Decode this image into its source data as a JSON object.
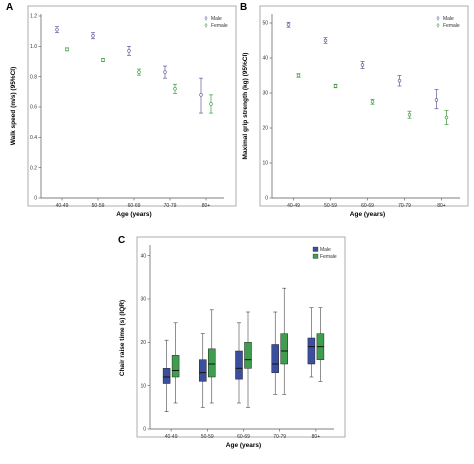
{
  "chart_data": [
    {
      "panel": "A",
      "type": "scatter",
      "subtype": "error-bar",
      "xlabel": "Age (years)",
      "ylabel": "Walk speed (m/s) (95%CI)",
      "categories": [
        "40-49",
        "50-59",
        "60-69",
        "70-79",
        "80+"
      ],
      "ylim": [
        0,
        1.2
      ],
      "yticks": [
        0,
        0.2,
        0.4,
        0.6,
        0.8,
        1.0,
        1.2
      ],
      "ytick_labels": [
        "0",
        "0.2",
        "0.4",
        "0.6",
        "0.8",
        "1.0",
        "1.2"
      ],
      "legend": "top-right",
      "grid": false,
      "series": [
        {
          "name": "Male",
          "color": "#5b5b9a",
          "marker": "open-circle",
          "values": [
            1.11,
            1.07,
            0.97,
            0.83,
            0.68
          ],
          "lower": [
            1.09,
            1.05,
            0.94,
            0.79,
            0.56
          ],
          "upper": [
            1.13,
            1.09,
            1.0,
            0.87,
            0.79
          ]
        },
        {
          "name": "Female",
          "color": "#3a9a3a",
          "marker": "open-circle",
          "values": [
            0.98,
            0.91,
            0.83,
            0.72,
            0.62
          ],
          "lower": [
            0.97,
            0.9,
            0.81,
            0.69,
            0.56
          ],
          "upper": [
            0.99,
            0.92,
            0.85,
            0.75,
            0.68
          ]
        }
      ]
    },
    {
      "panel": "B",
      "type": "scatter",
      "subtype": "error-bar",
      "xlabel": "Age (years)",
      "ylabel": "Maximal grip strength (kg) (95%CI)",
      "categories": [
        "40-49",
        "50-59",
        "60-69",
        "70-79",
        "80+"
      ],
      "ylim": [
        0,
        52
      ],
      "yticks": [
        0,
        10,
        20,
        30,
        40,
        50
      ],
      "ytick_labels": [
        "0",
        "10",
        "20",
        "30",
        "40",
        "50"
      ],
      "legend": "top-right",
      "grid": false,
      "series": [
        {
          "name": "Male",
          "color": "#5b5b9a",
          "marker": "open-circle",
          "values": [
            49.5,
            45,
            38,
            33.5,
            28
          ],
          "lower": [
            48.8,
            44.2,
            37,
            32,
            25.5
          ],
          "upper": [
            50.2,
            45.8,
            39,
            35,
            31
          ]
        },
        {
          "name": "Female",
          "color": "#3a9a3a",
          "marker": "open-circle",
          "values": [
            35,
            32,
            27.5,
            23.8,
            23
          ],
          "lower": [
            34.5,
            31.5,
            26.8,
            22.8,
            21
          ],
          "upper": [
            35.5,
            32.5,
            28.2,
            24.8,
            25
          ]
        }
      ]
    },
    {
      "panel": "C",
      "type": "box",
      "xlabel": "Age (years)",
      "ylabel": "Chair raise time (s) (IQR)",
      "categories": [
        "40-49",
        "50-59",
        "60-69",
        "70-79",
        "80+"
      ],
      "ylim": [
        0,
        42
      ],
      "yticks": [
        0,
        10,
        20,
        30,
        40
      ],
      "ytick_labels": [
        "0",
        "10",
        "20",
        "30",
        "40"
      ],
      "legend": "top-right",
      "grid": false,
      "series": [
        {
          "name": "Male",
          "color": "#3b4f9e",
          "boxes": [
            {
              "min": 4,
              "q1": 10.5,
              "median": 12,
              "q3": 14,
              "max": 20.5
            },
            {
              "min": 5,
              "q1": 11,
              "median": 13,
              "q3": 16,
              "max": 22
            },
            {
              "min": 6,
              "q1": 11.5,
              "median": 14,
              "q3": 18,
              "max": 24.5
            },
            {
              "min": 8,
              "q1": 13,
              "median": 15,
              "q3": 19.5,
              "max": 27
            },
            {
              "min": 12,
              "q1": 15,
              "median": 19,
              "q3": 21,
              "max": 28
            }
          ]
        },
        {
          "name": "Female",
          "color": "#3f9e4d",
          "boxes": [
            {
              "min": 6,
              "q1": 12,
              "median": 13.5,
              "q3": 17,
              "max": 24.5
            },
            {
              "min": 6,
              "q1": 12,
              "median": 15,
              "q3": 18.5,
              "max": 27.5
            },
            {
              "min": 5,
              "q1": 14,
              "median": 16,
              "q3": 20,
              "max": 27
            },
            {
              "min": 8,
              "q1": 15,
              "median": 18,
              "q3": 22,
              "max": 32.5
            },
            {
              "min": 11,
              "q1": 16,
              "median": 19,
              "q3": 22,
              "max": 28
            }
          ]
        }
      ]
    }
  ]
}
